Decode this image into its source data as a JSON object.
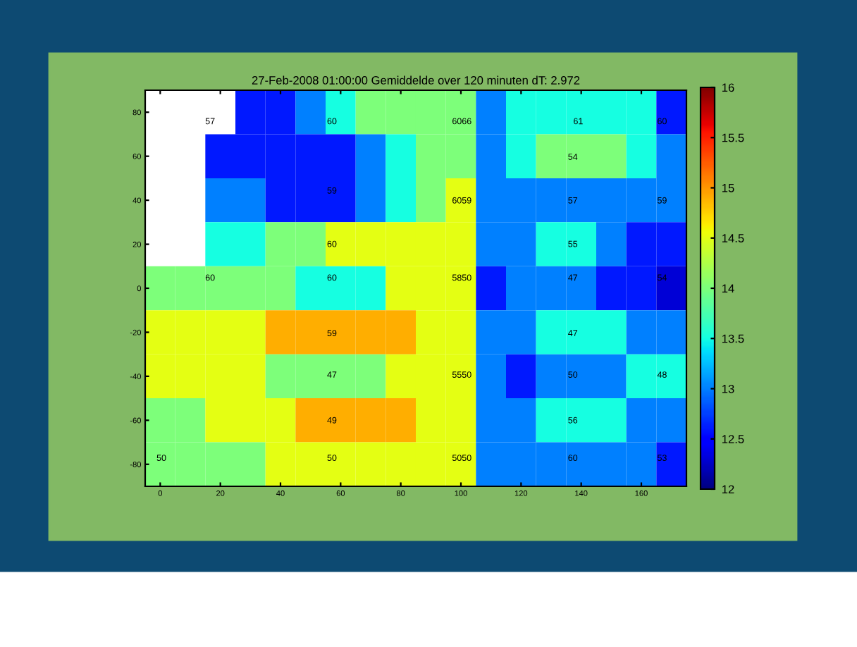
{
  "chart_data": {
    "type": "heatmap",
    "title": "27-Feb-2008 01:00:00 Gemiddelde over 120 minuten dT: 2.972",
    "categories": [
      "0",
      null,
      "20",
      null,
      "40",
      null,
      "60",
      null,
      "80",
      null,
      "100",
      null,
      "120",
      null,
      "140",
      null,
      "160",
      null
    ],
    "y_categories": [
      "80",
      "60",
      "40",
      "20",
      "0",
      "-20",
      "-40",
      "-60",
      "-80"
    ],
    "clim": [
      12,
      16
    ],
    "cticks": [
      12,
      12.5,
      13,
      13.5,
      14,
      14.5,
      15,
      15.5,
      16
    ],
    "cells": [
      [
        null,
        null,
        null,
        12.6,
        12.6,
        13.0,
        13.5,
        14.0,
        14.0,
        14.0,
        14.0,
        13.0,
        13.5,
        13.5,
        13.5,
        13.5,
        13.5,
        12.6
      ],
      [
        null,
        null,
        12.6,
        12.6,
        12.6,
        12.6,
        12.6,
        13.0,
        13.5,
        14.0,
        14.0,
        13.0,
        13.5,
        14.0,
        14.0,
        14.0,
        13.5,
        13.0
      ],
      [
        null,
        null,
        13.0,
        13.0,
        12.6,
        12.6,
        12.6,
        13.0,
        13.5,
        14.0,
        14.5,
        13.0,
        13.0,
        13.0,
        13.0,
        13.0,
        13.0,
        13.0
      ],
      [
        null,
        null,
        13.5,
        13.5,
        14.0,
        14.0,
        14.5,
        14.5,
        14.5,
        14.5,
        14.5,
        13.0,
        13.0,
        13.5,
        13.5,
        13.0,
        12.6,
        12.6
      ],
      [
        14.0,
        14.0,
        14.0,
        14.0,
        14.0,
        13.5,
        13.5,
        13.5,
        14.5,
        14.5,
        14.5,
        12.6,
        13.0,
        13.0,
        13.0,
        12.6,
        12.6,
        12.3
      ],
      [
        14.5,
        14.5,
        14.5,
        14.5,
        14.9,
        14.9,
        14.9,
        14.9,
        14.9,
        14.5,
        14.5,
        13.0,
        13.0,
        13.5,
        13.5,
        13.5,
        13.0,
        13.0
      ],
      [
        14.5,
        14.5,
        14.5,
        14.5,
        14.0,
        14.0,
        14.0,
        14.0,
        14.5,
        14.5,
        14.5,
        13.0,
        12.6,
        13.0,
        13.0,
        13.0,
        13.5,
        13.5
      ],
      [
        14.0,
        14.0,
        14.5,
        14.5,
        14.5,
        14.9,
        14.9,
        14.9,
        14.9,
        14.5,
        14.5,
        13.0,
        13.0,
        13.5,
        13.5,
        13.5,
        13.0,
        13.0
      ],
      [
        14.0,
        14.0,
        14.0,
        14.0,
        14.5,
        14.5,
        14.5,
        14.5,
        14.5,
        14.5,
        14.5,
        13.0,
        13.0,
        13.0,
        13.0,
        13.0,
        13.0,
        12.6
      ]
    ],
    "annotations": [
      "57",
      "60",
      "6066",
      "61",
      "60",
      "54",
      "59",
      "6059",
      "57",
      "59",
      "60",
      "55",
      "60",
      "60",
      "5850",
      "47",
      "54",
      "59",
      "47",
      "47",
      "5550",
      "50",
      "48",
      "49",
      "56",
      "50",
      "50",
      "5050",
      "60",
      "53"
    ]
  }
}
